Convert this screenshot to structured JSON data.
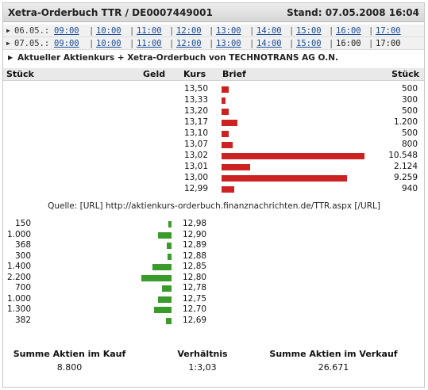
{
  "header": {
    "title": "Xetra-Orderbuch TTR / DE0007449001",
    "stand": "Stand: 07.05.2008 16:04"
  },
  "dates": [
    {
      "date": "06.05.:",
      "times": [
        {
          "label": "09:00",
          "link": true
        },
        {
          "label": "10:00",
          "link": true
        },
        {
          "label": "11:00",
          "link": true
        },
        {
          "label": "12:00",
          "link": true
        },
        {
          "label": "13:00",
          "link": true
        },
        {
          "label": "14:00",
          "link": true
        },
        {
          "label": "15:00",
          "link": true
        },
        {
          "label": "16:00",
          "link": true
        },
        {
          "label": "17:00",
          "link": true
        }
      ]
    },
    {
      "date": "07.05.:",
      "times": [
        {
          "label": "09:00",
          "link": true
        },
        {
          "label": "10:00",
          "link": true
        },
        {
          "label": "11:00",
          "link": true
        },
        {
          "label": "12:00",
          "link": true
        },
        {
          "label": "13:00",
          "link": true
        },
        {
          "label": "14:00",
          "link": true
        },
        {
          "label": "15:00",
          "link": true
        },
        {
          "label": "16:00",
          "link": false
        },
        {
          "label": "17:00",
          "link": false
        }
      ]
    }
  ],
  "info": "Aktueller Aktienkurs + Xetra-Orderbuch von TECHNOTRANS AG O.N.",
  "columns": {
    "stueck_left": "Stück",
    "geld": "Geld",
    "kurs": "Kurs",
    "brief": "Brief",
    "stueck_right": "Stück"
  },
  "colors": {
    "ask": "#cc2222",
    "bid": "#3a9a2a"
  },
  "asks": [
    {
      "kurs": "13,50",
      "stueck": "500",
      "qty": 500
    },
    {
      "kurs": "13,33",
      "stueck": "300",
      "qty": 300
    },
    {
      "kurs": "13,20",
      "stueck": "500",
      "qty": 500
    },
    {
      "kurs": "13,17",
      "stueck": "1.200",
      "qty": 1200
    },
    {
      "kurs": "13,10",
      "stueck": "500",
      "qty": 500
    },
    {
      "kurs": "13,07",
      "stueck": "800",
      "qty": 800
    },
    {
      "kurs": "13,02",
      "stueck": "10.548",
      "qty": 10548
    },
    {
      "kurs": "13,01",
      "stueck": "2.124",
      "qty": 2124
    },
    {
      "kurs": "13,00",
      "stueck": "9.259",
      "qty": 9259
    },
    {
      "kurs": "12,99",
      "stueck": "940",
      "qty": 940
    }
  ],
  "source": "Quelle: [URL] http://aktienkurs-orderbuch.finanznachrichten.de/TTR.aspx [/URL]",
  "bids": [
    {
      "stueck": "150",
      "kurs": "12,98",
      "qty": 150
    },
    {
      "stueck": "1.000",
      "kurs": "12,90",
      "qty": 1000
    },
    {
      "stueck": "368",
      "kurs": "12,89",
      "qty": 368
    },
    {
      "stueck": "300",
      "kurs": "12,88",
      "qty": 300
    },
    {
      "stueck": "1.400",
      "kurs": "12,85",
      "qty": 1400
    },
    {
      "stueck": "2.200",
      "kurs": "12,80",
      "qty": 2200
    },
    {
      "stueck": "700",
      "kurs": "12,78",
      "qty": 700
    },
    {
      "stueck": "1.000",
      "kurs": "12,75",
      "qty": 1000
    },
    {
      "stueck": "1.300",
      "kurs": "12,70",
      "qty": 1300
    },
    {
      "stueck": "382",
      "kurs": "12,69",
      "qty": 382
    }
  ],
  "summary": {
    "kauf_label": "Summe Aktien im Kauf",
    "kauf_value": "8.800",
    "ratio_label": "Verhältnis",
    "ratio_value": "1:3,03",
    "verkauf_label": "Summe Aktien im Verkauf",
    "verkauf_value": "26.671"
  }
}
